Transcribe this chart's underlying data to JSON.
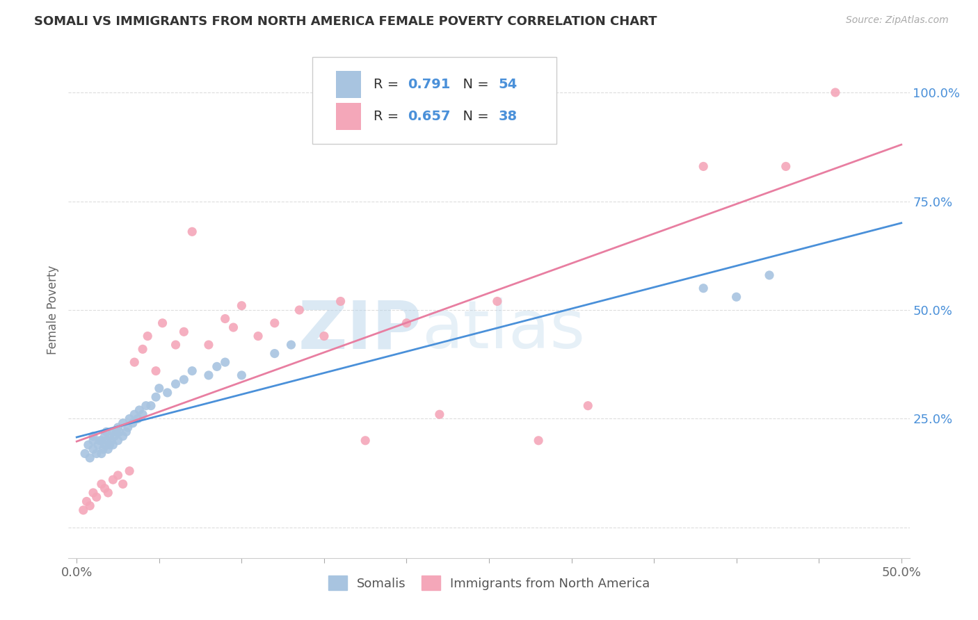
{
  "title": "SOMALI VS IMMIGRANTS FROM NORTH AMERICA FEMALE POVERTY CORRELATION CHART",
  "source": "Source: ZipAtlas.com",
  "ylabel": "Female Poverty",
  "y_ticks": [
    0.0,
    0.25,
    0.5,
    0.75,
    1.0
  ],
  "y_tick_labels": [
    "",
    "25.0%",
    "50.0%",
    "75.0%",
    "100.0%"
  ],
  "x_ticks": [
    0.0,
    0.05,
    0.1,
    0.15,
    0.2,
    0.25,
    0.3,
    0.35,
    0.4,
    0.45,
    0.5
  ],
  "x_tick_labels": [
    "0.0%",
    "",
    "",
    "",
    "",
    "",
    "",
    "",
    "",
    "",
    "50.0%"
  ],
  "xlim": [
    -0.005,
    0.505
  ],
  "ylim": [
    -0.07,
    1.07
  ],
  "blue_color": "#a8c4e0",
  "pink_color": "#f4a7b9",
  "line_blue": "#4a90d9",
  "line_pink": "#e87ea1",
  "somali_x": [
    0.005,
    0.007,
    0.008,
    0.01,
    0.01,
    0.01,
    0.012,
    0.013,
    0.014,
    0.015,
    0.015,
    0.016,
    0.017,
    0.017,
    0.018,
    0.018,
    0.019,
    0.02,
    0.02,
    0.021,
    0.022,
    0.022,
    0.023,
    0.024,
    0.025,
    0.025,
    0.026,
    0.028,
    0.028,
    0.03,
    0.031,
    0.032,
    0.034,
    0.035,
    0.037,
    0.038,
    0.04,
    0.042,
    0.045,
    0.048,
    0.05,
    0.055,
    0.06,
    0.065,
    0.07,
    0.08,
    0.085,
    0.09,
    0.1,
    0.12,
    0.13,
    0.38,
    0.4,
    0.42
  ],
  "somali_y": [
    0.17,
    0.19,
    0.16,
    0.18,
    0.2,
    0.21,
    0.17,
    0.19,
    0.2,
    0.17,
    0.2,
    0.18,
    0.19,
    0.21,
    0.2,
    0.22,
    0.18,
    0.19,
    0.21,
    0.2,
    0.19,
    0.22,
    0.21,
    0.22,
    0.2,
    0.23,
    0.22,
    0.21,
    0.24,
    0.22,
    0.23,
    0.25,
    0.24,
    0.26,
    0.25,
    0.27,
    0.26,
    0.28,
    0.28,
    0.3,
    0.32,
    0.31,
    0.33,
    0.34,
    0.36,
    0.35,
    0.37,
    0.38,
    0.35,
    0.4,
    0.42,
    0.55,
    0.53,
    0.58
  ],
  "north_america_x": [
    0.004,
    0.006,
    0.008,
    0.01,
    0.012,
    0.015,
    0.017,
    0.019,
    0.022,
    0.025,
    0.028,
    0.032,
    0.035,
    0.04,
    0.043,
    0.048,
    0.052,
    0.06,
    0.065,
    0.07,
    0.08,
    0.09,
    0.095,
    0.1,
    0.11,
    0.12,
    0.135,
    0.15,
    0.16,
    0.175,
    0.2,
    0.22,
    0.255,
    0.28,
    0.31,
    0.38,
    0.43,
    0.46
  ],
  "north_america_y": [
    0.04,
    0.06,
    0.05,
    0.08,
    0.07,
    0.1,
    0.09,
    0.08,
    0.11,
    0.12,
    0.1,
    0.13,
    0.38,
    0.41,
    0.44,
    0.36,
    0.47,
    0.42,
    0.45,
    0.68,
    0.42,
    0.48,
    0.46,
    0.51,
    0.44,
    0.47,
    0.5,
    0.44,
    0.52,
    0.2,
    0.47,
    0.26,
    0.52,
    0.2,
    0.28,
    0.83,
    0.83,
    1.0
  ]
}
